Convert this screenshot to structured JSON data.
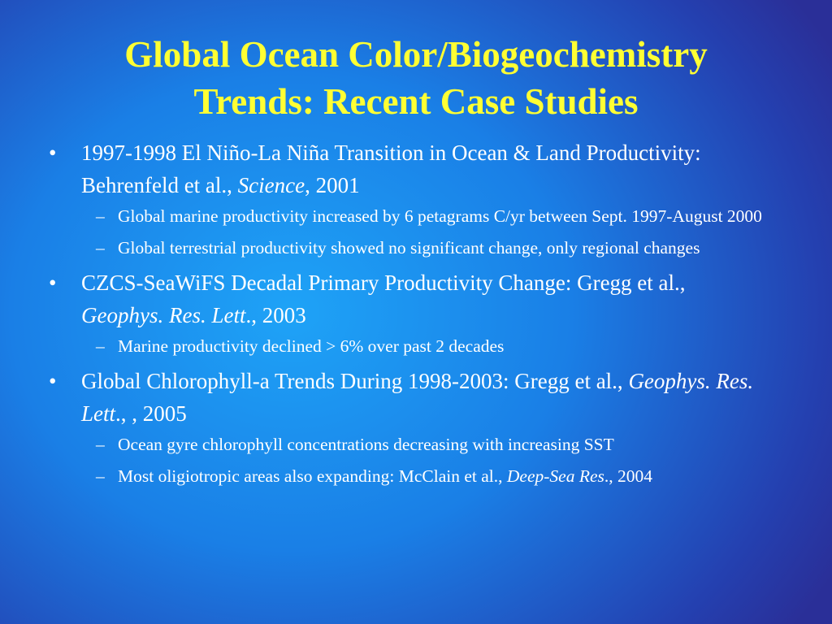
{
  "title": [
    "Global Ocean Color/Biogeochemistry",
    "Trends: Recent Case Studies"
  ],
  "items": [
    {
      "segments": [
        {
          "text": "1997-1998 El Niño-La Niña Transition in Ocean & Land Productivity:  Behrenfeld et al., "
        },
        {
          "text": "Science",
          "italic": true
        },
        {
          "text": ", 2001"
        }
      ],
      "subs": [
        {
          "segments": [
            {
              "text": "Global marine productivity increased by 6 petagrams C/yr between Sept. 1997-August 2000"
            }
          ]
        },
        {
          "segments": [
            {
              "text": "Global terrestrial productivity showed no significant change, only regional changes"
            }
          ]
        }
      ]
    },
    {
      "segments": [
        {
          "text": "CZCS-SeaWiFS Decadal Primary Productivity Change: Gregg et al., "
        },
        {
          "text": "Geophys. Res. Lett",
          "italic": true
        },
        {
          "text": "., 2003"
        }
      ],
      "subs": [
        {
          "segments": [
            {
              "text": "Marine productivity declined > 6% over past 2 decades"
            }
          ]
        }
      ]
    },
    {
      "segments": [
        {
          "text": "Global Chlorophyll-a Trends During 1998-2003: Gregg et al., "
        },
        {
          "text": "Geophys. Res. Lett",
          "italic": true
        },
        {
          "text": "., , 2005"
        }
      ],
      "subs": [
        {
          "segments": [
            {
              "text": "Ocean gyre chlorophyll concentrations decreasing with increasing SST"
            }
          ]
        },
        {
          "segments": [
            {
              "text": "Most oligiotropic areas also expanding: McClain et al., "
            },
            {
              "text": "Deep-Sea Res",
              "italic": true
            },
            {
              "text": "., 2004"
            }
          ]
        }
      ]
    }
  ]
}
